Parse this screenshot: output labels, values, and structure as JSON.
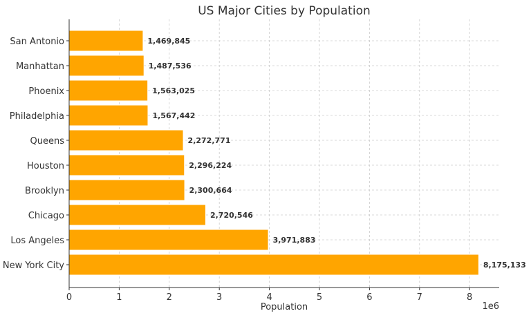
{
  "chart_data": {
    "type": "bar",
    "orientation": "horizontal",
    "title": "US Major Cities by Population",
    "xlabel": "Population",
    "ylabel": "",
    "x_offset_label": "1e6",
    "categories": [
      "New York City",
      "Los Angeles",
      "Chicago",
      "Brooklyn",
      "Houston",
      "Queens",
      "Philadelphia",
      "Phoenix",
      "Manhattan",
      "San Antonio"
    ],
    "values": [
      8175133,
      3971883,
      2720546,
      2300664,
      2296224,
      2272771,
      1567442,
      1563025,
      1487536,
      1469845
    ],
    "data_labels": [
      "8,175,133",
      "3,971,883",
      "2,720,546",
      "2,300,664",
      "2,296,224",
      "2,272,771",
      "1,567,442",
      "1,563,025",
      "1,487,536",
      "1,469,845"
    ],
    "xticks": [
      "0",
      "1",
      "2",
      "3",
      "4",
      "5",
      "6",
      "7",
      "8"
    ],
    "xlim": [
      0,
      8590000
    ],
    "grid": true,
    "bar_color": "#FFA500"
  }
}
